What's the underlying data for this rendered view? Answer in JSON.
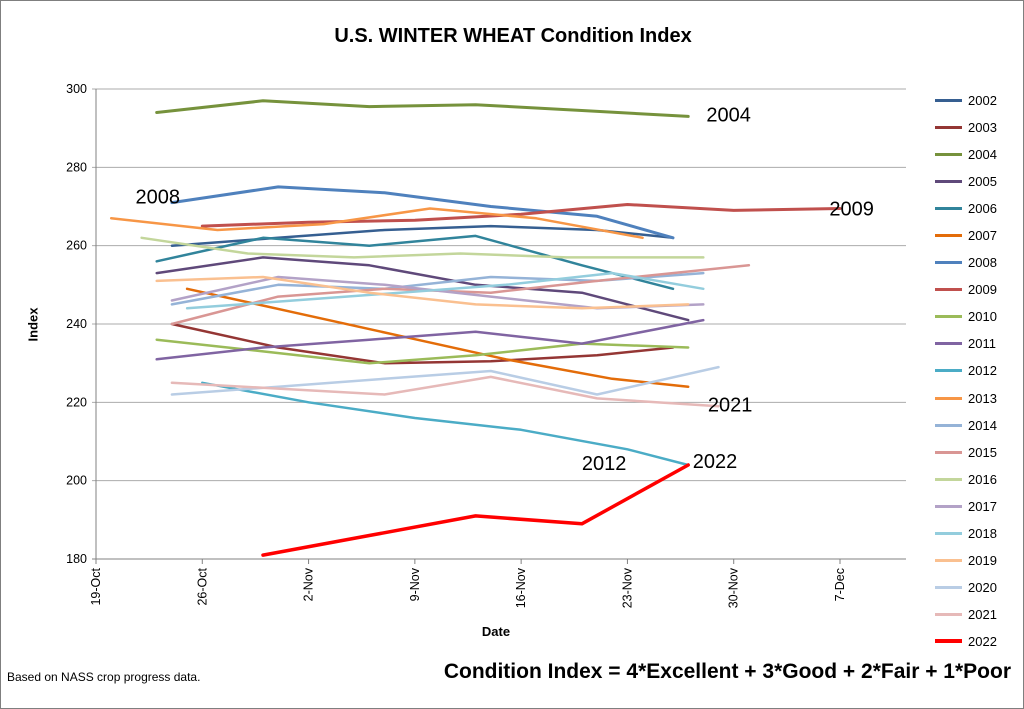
{
  "title": "U.S. WINTER WHEAT Condition Index",
  "footer": {
    "source_note": "Based on NASS crop progress data.",
    "formula": "Condition Index = 4*Excellent + 3*Good + 2*Fair + 1*Poor"
  },
  "chart_data": {
    "type": "line",
    "title": "U.S. WINTER WHEAT Condition Index",
    "xlabel": "Date",
    "ylabel": "Index",
    "ylim": [
      180,
      300
    ],
    "y_tick_step": 20,
    "grid": "horizontal",
    "legend_position": "right",
    "x_ticks": [
      {
        "label": "19-Oct",
        "day": 0
      },
      {
        "label": "26-Oct",
        "day": 7
      },
      {
        "label": "2-Nov",
        "day": 14
      },
      {
        "label": "9-Nov",
        "day": 21
      },
      {
        "label": "16-Nov",
        "day": 28
      },
      {
        "label": "23-Nov",
        "day": 35
      },
      {
        "label": "30-Nov",
        "day": 42
      },
      {
        "label": "7-Dec",
        "day": 49
      }
    ],
    "series": [
      {
        "name": "2002",
        "color": "#365F91",
        "width": 2.5,
        "days": [
          5,
          12,
          19,
          26,
          33,
          38
        ],
        "values": [
          260,
          262,
          264,
          265,
          264,
          262
        ]
      },
      {
        "name": "2003",
        "color": "#943634",
        "width": 2.5,
        "days": [
          5,
          12,
          19,
          26,
          33,
          38
        ],
        "values": [
          240,
          234,
          230,
          230.5,
          232,
          234
        ]
      },
      {
        "name": "2004",
        "color": "#76923C",
        "width": 3,
        "days": [
          4,
          11,
          18,
          25,
          32,
          39
        ],
        "values": [
          294,
          297,
          295.5,
          296,
          294.5,
          293
        ]
      },
      {
        "name": "2005",
        "color": "#5F497A",
        "width": 2.5,
        "days": [
          4,
          11,
          18,
          25,
          32,
          39
        ],
        "values": [
          253,
          257,
          255,
          250,
          248,
          241
        ]
      },
      {
        "name": "2006",
        "color": "#31849B",
        "width": 2.5,
        "days": [
          4,
          11,
          18,
          25,
          32,
          38
        ],
        "values": [
          256,
          262,
          260,
          262.5,
          255,
          249
        ]
      },
      {
        "name": "2007",
        "color": "#E36C09",
        "width": 2.5,
        "days": [
          6,
          13,
          20,
          27,
          34,
          39
        ],
        "values": [
          249,
          243,
          237,
          231,
          226,
          224
        ]
      },
      {
        "name": "2008",
        "color": "#4F81BD",
        "width": 3,
        "days": [
          5,
          12,
          19,
          26,
          33,
          38
        ],
        "values": [
          271,
          275,
          273.5,
          270,
          267.5,
          262
        ]
      },
      {
        "name": "2009",
        "color": "#C0504D",
        "width": 3,
        "days": [
          7,
          14,
          21,
          28,
          35,
          42,
          49
        ],
        "values": [
          265,
          266,
          266.5,
          268,
          270.5,
          269,
          269.5
        ]
      },
      {
        "name": "2010",
        "color": "#9BBB59",
        "width": 2.5,
        "days": [
          4,
          11,
          18,
          25,
          32,
          39
        ],
        "values": [
          236,
          233,
          230,
          232,
          235,
          234
        ]
      },
      {
        "name": "2011",
        "color": "#8064A2",
        "width": 2.5,
        "days": [
          4,
          11,
          18,
          25,
          32,
          40
        ],
        "values": [
          231,
          234,
          236,
          238,
          235,
          241
        ]
      },
      {
        "name": "2012",
        "color": "#4BACC6",
        "width": 2.5,
        "days": [
          7,
          14,
          21,
          28,
          35,
          39
        ],
        "values": [
          225,
          220,
          216,
          213,
          208,
          204
        ]
      },
      {
        "name": "2013",
        "color": "#F79646",
        "width": 2.5,
        "days": [
          1,
          8,
          15,
          22,
          29,
          36
        ],
        "values": [
          267,
          264,
          265.5,
          269.5,
          267,
          262
        ]
      },
      {
        "name": "2014",
        "color": "#95B3D7",
        "width": 2.5,
        "days": [
          5,
          12,
          19,
          26,
          33,
          40
        ],
        "values": [
          245,
          250,
          249,
          252,
          251,
          253
        ]
      },
      {
        "name": "2015",
        "color": "#D99694",
        "width": 2.5,
        "days": [
          5,
          12,
          19,
          26,
          33,
          43
        ],
        "values": [
          240,
          247,
          249,
          248,
          251,
          255
        ]
      },
      {
        "name": "2016",
        "color": "#C3D69B",
        "width": 2.5,
        "days": [
          3,
          10,
          17,
          24,
          31,
          40
        ],
        "values": [
          262,
          258,
          257,
          258,
          257,
          257
        ]
      },
      {
        "name": "2017",
        "color": "#B3A2C7",
        "width": 2.5,
        "days": [
          5,
          12,
          19,
          26,
          33,
          40
        ],
        "values": [
          246,
          252,
          250,
          247,
          244,
          245
        ]
      },
      {
        "name": "2018",
        "color": "#93CDDD",
        "width": 2.5,
        "days": [
          6,
          13,
          20,
          27,
          34,
          40
        ],
        "values": [
          244,
          246,
          248,
          250,
          253,
          249
        ]
      },
      {
        "name": "2019",
        "color": "#FAC090",
        "width": 2.5,
        "days": [
          4,
          11,
          18,
          25,
          32,
          39
        ],
        "values": [
          251,
          252,
          248,
          245,
          244,
          245
        ]
      },
      {
        "name": "2020",
        "color": "#B9CDE5",
        "width": 2.5,
        "days": [
          5,
          12,
          19,
          26,
          33,
          41
        ],
        "values": [
          222,
          224,
          226,
          228,
          222,
          229
        ]
      },
      {
        "name": "2021",
        "color": "#E6B9B8",
        "width": 2.5,
        "days": [
          5,
          12,
          19,
          26,
          33,
          41
        ],
        "values": [
          225,
          223.5,
          222,
          226.5,
          221,
          219
        ]
      },
      {
        "name": "2022",
        "color": "#FF0000",
        "width": 3.5,
        "days": [
          11,
          18,
          25,
          32,
          39
        ],
        "values": [
          181,
          186,
          191,
          189,
          204
        ]
      }
    ],
    "annotations": [
      {
        "text": "2008",
        "day": 2.6,
        "value": 272.5
      },
      {
        "text": "2004",
        "day": 40.2,
        "value": 293.5
      },
      {
        "text": "2009",
        "day": 48.3,
        "value": 269.5
      },
      {
        "text": "2012",
        "day": 32.0,
        "value": 204.5
      },
      {
        "text": "2021",
        "day": 40.3,
        "value": 219.5
      },
      {
        "text": "2022",
        "day": 39.3,
        "value": 205.0
      }
    ]
  }
}
